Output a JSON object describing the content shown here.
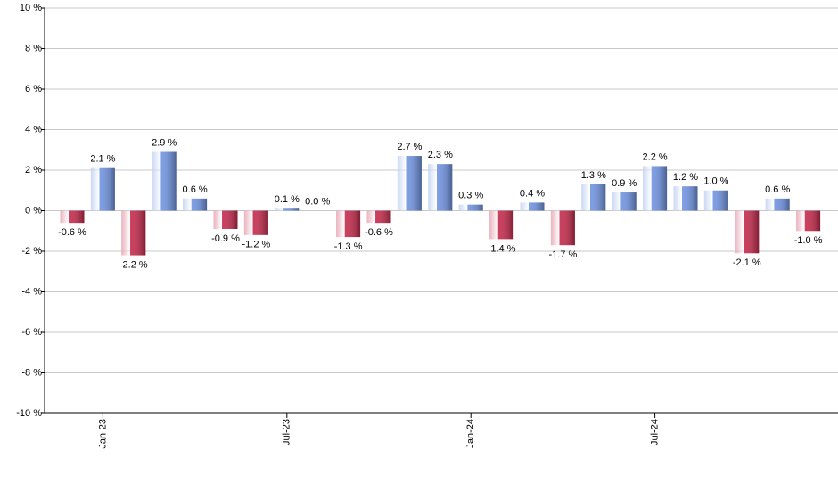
{
  "chart_data": {
    "type": "bar",
    "categories": [
      null,
      "Jan-23",
      null,
      null,
      null,
      null,
      null,
      "Jul-23",
      null,
      null,
      null,
      null,
      null,
      "Jan-24",
      null,
      null,
      null,
      null,
      null,
      "Jul-24",
      null,
      null,
      null,
      null,
      null
    ],
    "values": [
      -0.6,
      2.1,
      -2.2,
      2.9,
      0.6,
      -0.9,
      -1.2,
      0.1,
      0.0,
      -1.3,
      -0.6,
      2.7,
      2.3,
      0.3,
      -1.4,
      0.4,
      -1.7,
      1.3,
      0.9,
      2.2,
      1.2,
      1.0,
      -2.1,
      0.6,
      -1.0
    ],
    "value_labels": [
      "-0.6 %",
      "2.1 %",
      "-2.2 %",
      "2.9 %",
      "0.6 %",
      "-0.9 %",
      "-1.2 %",
      "0.1 %",
      "0.0 %",
      "-1.3 %",
      "-0.6 %",
      "2.7 %",
      "2.3 %",
      "0.3 %",
      "-1.4 %",
      "0.4 %",
      "-1.7 %",
      "1.3 %",
      "0.9 %",
      "2.2 %",
      "1.2 %",
      "1.0 %",
      "-2.1 %",
      "0.6 %",
      "-1.0 %"
    ],
    "colors": {
      "positive": "#6f93e0",
      "negative": "#c42a4c"
    },
    "ylim": [
      -10,
      10
    ],
    "yticks": [
      {
        "value": -10,
        "label": "-10 %"
      },
      {
        "value": -8,
        "label": "-8 %"
      },
      {
        "value": -6,
        "label": "-6 %"
      },
      {
        "value": -4,
        "label": "-4 %"
      },
      {
        "value": -2,
        "label": "-2 %"
      },
      {
        "value": 0,
        "label": "0 %"
      },
      {
        "value": 2,
        "label": "2 %"
      },
      {
        "value": 4,
        "label": "4 %"
      },
      {
        "value": 6,
        "label": "6 %"
      },
      {
        "value": 8,
        "label": "8 %"
      },
      {
        "value": 10,
        "label": "10 %"
      }
    ],
    "grid": true
  }
}
